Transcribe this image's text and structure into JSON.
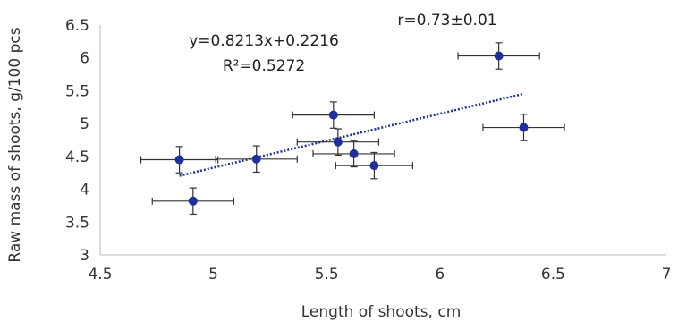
{
  "chart_data": {
    "type": "scatter",
    "xlabel": "Length of shoots, cm",
    "ylabel": "Raw mass of shoots, g/100 pcs",
    "xlim": [
      4.5,
      7
    ],
    "ylim": [
      3,
      6.5
    ],
    "xticks": [
      "4.5",
      "5",
      "5.5",
      "6",
      "6.5",
      "7"
    ],
    "yticks": [
      "3",
      "3.5",
      "4",
      "4.5",
      "5",
      "5.5",
      "6",
      "6.5"
    ],
    "grid": false,
    "points": [
      {
        "x": 4.85,
        "y": 4.45,
        "xerr": 0.17,
        "yerr": 0.2
      },
      {
        "x": 4.91,
        "y": 3.82,
        "xerr": 0.18,
        "yerr": 0.2
      },
      {
        "x": 5.19,
        "y": 4.46,
        "xerr": 0.18,
        "yerr": 0.2
      },
      {
        "x": 5.53,
        "y": 5.13,
        "xerr": 0.18,
        "yerr": 0.2
      },
      {
        "x": 5.55,
        "y": 4.72,
        "xerr": 0.18,
        "yerr": 0.2
      },
      {
        "x": 5.62,
        "y": 4.54,
        "xerr": 0.18,
        "yerr": 0.2
      },
      {
        "x": 5.71,
        "y": 4.36,
        "xerr": 0.17,
        "yerr": 0.2
      },
      {
        "x": 6.26,
        "y": 6.03,
        "xerr": 0.18,
        "yerr": 0.2
      },
      {
        "x": 6.37,
        "y": 4.94,
        "xerr": 0.18,
        "yerr": 0.2
      }
    ],
    "trendline": {
      "type": "linear",
      "slope": 0.8213,
      "intercept": 0.2216,
      "x_range": [
        4.85,
        6.37
      ],
      "style": "dotted",
      "color": "#1f2f9c"
    },
    "equation": "y=0.8213x+0.2216",
    "r_squared": "R²=0.5272",
    "correlation": "r=0.73±0.01",
    "colors": {
      "point": "#1f2f9c",
      "error_bar": "#333333",
      "axis": "#bbbbbb"
    }
  }
}
